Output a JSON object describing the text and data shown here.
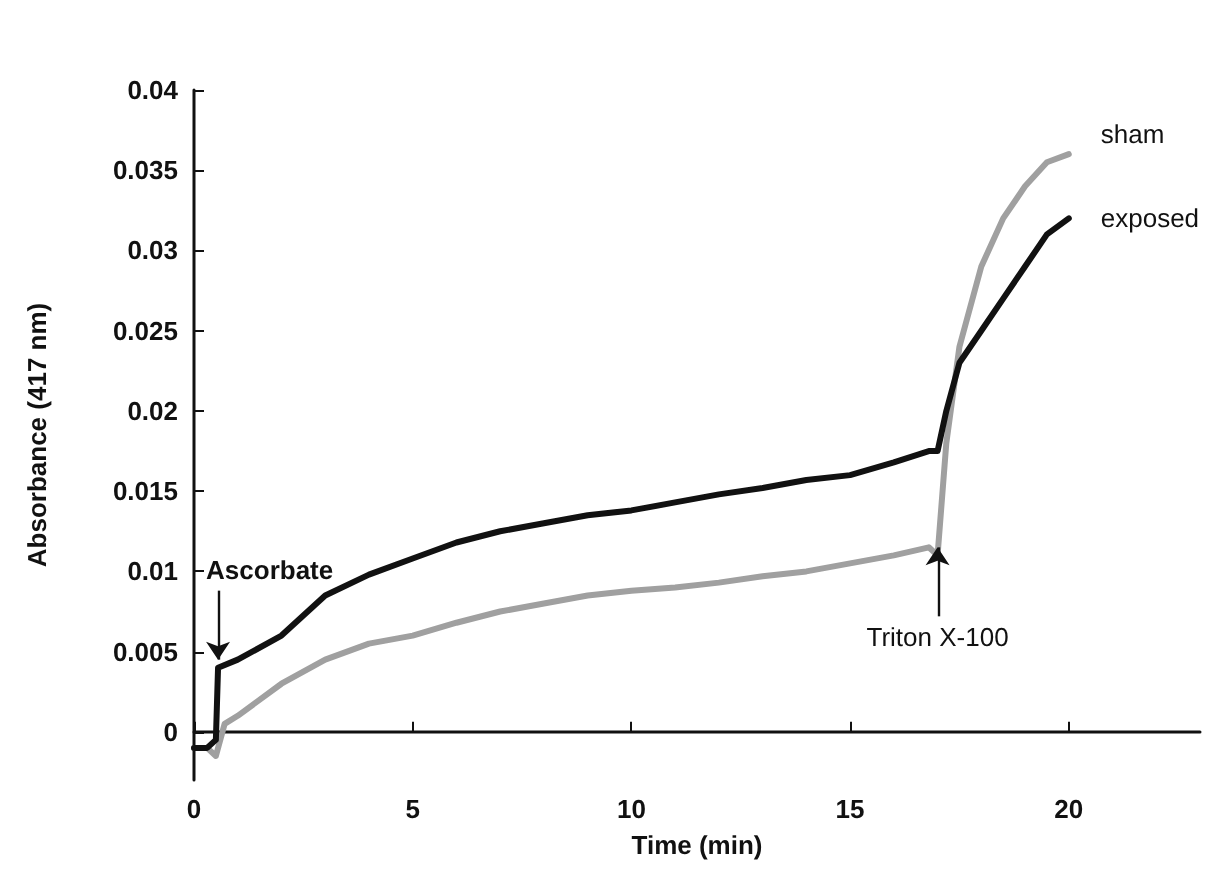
{
  "chart_data": {
    "type": "line",
    "xlabel": "Time (min)",
    "ylabel": "Absorbance (417 nm)",
    "xlim": [
      0,
      23
    ],
    "xticks": [
      0,
      5,
      10,
      15,
      20
    ],
    "ylim": [
      -0.003,
      0.04
    ],
    "yticks": [
      0,
      0.005,
      0.01,
      0.015,
      0.02,
      0.025,
      0.03,
      0.035,
      0.04
    ],
    "grid": false,
    "legend": false,
    "marker": "none",
    "line_style": "solid",
    "annotations": [
      {
        "text": "Ascorbate",
        "x": 0.55,
        "y": 0.0045
      },
      {
        "text": "Triton X-100",
        "x": 17,
        "y": 0.0115
      }
    ],
    "series": [
      {
        "name": "sham",
        "color": "#a0a0a0",
        "x": [
          0,
          0.3,
          0.5,
          0.7,
          1,
          2,
          3,
          4,
          5,
          6,
          7,
          8,
          9,
          10,
          11,
          12,
          13,
          14,
          15,
          16,
          16.8,
          17,
          17.2,
          17.5,
          18,
          18.5,
          19,
          19.5,
          20
        ],
        "values": [
          -0.001,
          -0.001,
          -0.0015,
          0.0005,
          0.001,
          0.003,
          0.0045,
          0.0055,
          0.006,
          0.0068,
          0.0075,
          0.008,
          0.0085,
          0.0088,
          0.009,
          0.0093,
          0.0097,
          0.01,
          0.0105,
          0.011,
          0.0115,
          0.011,
          0.018,
          0.024,
          0.029,
          0.032,
          0.034,
          0.0355,
          0.036
        ]
      },
      {
        "name": "exposed",
        "color": "#111111",
        "x": [
          0,
          0.3,
          0.5,
          0.55,
          1,
          2,
          3,
          4,
          5,
          6,
          7,
          8,
          9,
          10,
          11,
          12,
          13,
          14,
          15,
          16,
          16.8,
          17,
          17.2,
          17.5,
          18,
          18.5,
          19,
          19.5,
          20
        ],
        "values": [
          -0.001,
          -0.001,
          -0.0005,
          0.004,
          0.0045,
          0.006,
          0.0085,
          0.0098,
          0.0108,
          0.0118,
          0.0125,
          0.013,
          0.0135,
          0.0138,
          0.0143,
          0.0148,
          0.0152,
          0.0157,
          0.016,
          0.0168,
          0.0175,
          0.0175,
          0.02,
          0.023,
          0.025,
          0.027,
          0.029,
          0.031,
          0.032
        ]
      }
    ]
  }
}
